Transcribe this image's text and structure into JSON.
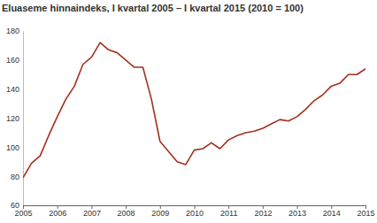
{
  "chart_data": {
    "type": "line",
    "title": "Eluaseme hinnaindeks, I kvartal 2005 – I kvartal 2015 (2010 = 100)",
    "x": [
      2005,
      2005.25,
      2005.5,
      2005.75,
      2006,
      2006.25,
      2006.5,
      2006.75,
      2007,
      2007.25,
      2007.5,
      2007.75,
      2008,
      2008.25,
      2008.5,
      2008.75,
      2009,
      2009.25,
      2009.5,
      2009.75,
      2010,
      2010.25,
      2010.5,
      2010.75,
      2011,
      2011.25,
      2011.5,
      2011.75,
      2012,
      2012.25,
      2012.5,
      2012.75,
      2013,
      2013.25,
      2013.5,
      2013.75,
      2014,
      2014.25,
      2014.5,
      2014.75,
      2015
    ],
    "values": [
      79,
      89,
      94,
      108,
      121,
      133,
      142,
      157,
      162,
      172,
      167,
      165,
      160,
      155,
      155,
      133,
      104,
      97,
      90,
      88,
      98,
      99,
      103,
      99,
      105,
      108,
      110,
      111,
      113,
      116,
      119,
      118,
      121,
      126,
      132,
      136,
      142,
      144,
      150,
      150,
      154
    ],
    "color": "#a3301c",
    "xlim": [
      2005,
      2015
    ],
    "xticks": [
      2005,
      2006,
      2007,
      2008,
      2009,
      2010,
      2011,
      2012,
      2013,
      2014,
      2015
    ],
    "ylim": [
      60,
      180
    ],
    "yticks": [
      60,
      80,
      100,
      120,
      140,
      160,
      180
    ],
    "grid": false
  }
}
